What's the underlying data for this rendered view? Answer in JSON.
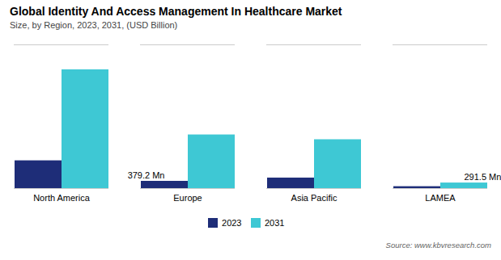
{
  "chart_data": {
    "type": "bar",
    "title": "Global Identity And Access Management In Healthcare Market",
    "subtitle": "Size, by Region, 2023, 2031, (USD Billion)",
    "source": "Source: www.kbvresearch.com",
    "categories": [
      "North America",
      "Europe",
      "Asia Pacific",
      "LAMEA"
    ],
    "series": [
      {
        "name": "2023",
        "color": "#1e2d78",
        "values": [
          1.45,
          0.3792,
          0.55,
          0.1
        ]
      },
      {
        "name": "2031",
        "color": "#3ec8d4",
        "values": [
          6.2,
          2.8,
          2.55,
          0.2915
        ]
      }
    ],
    "ylim": [
      0,
      7.5
    ],
    "tick_labels": "x",
    "grid": false,
    "legend": "bottom",
    "annotations": [
      {
        "text": "379.2 Mn",
        "category": "Europe",
        "series": "2023"
      },
      {
        "text": "291.5 Mn",
        "category": "LAMEA",
        "series": "2031"
      }
    ]
  }
}
